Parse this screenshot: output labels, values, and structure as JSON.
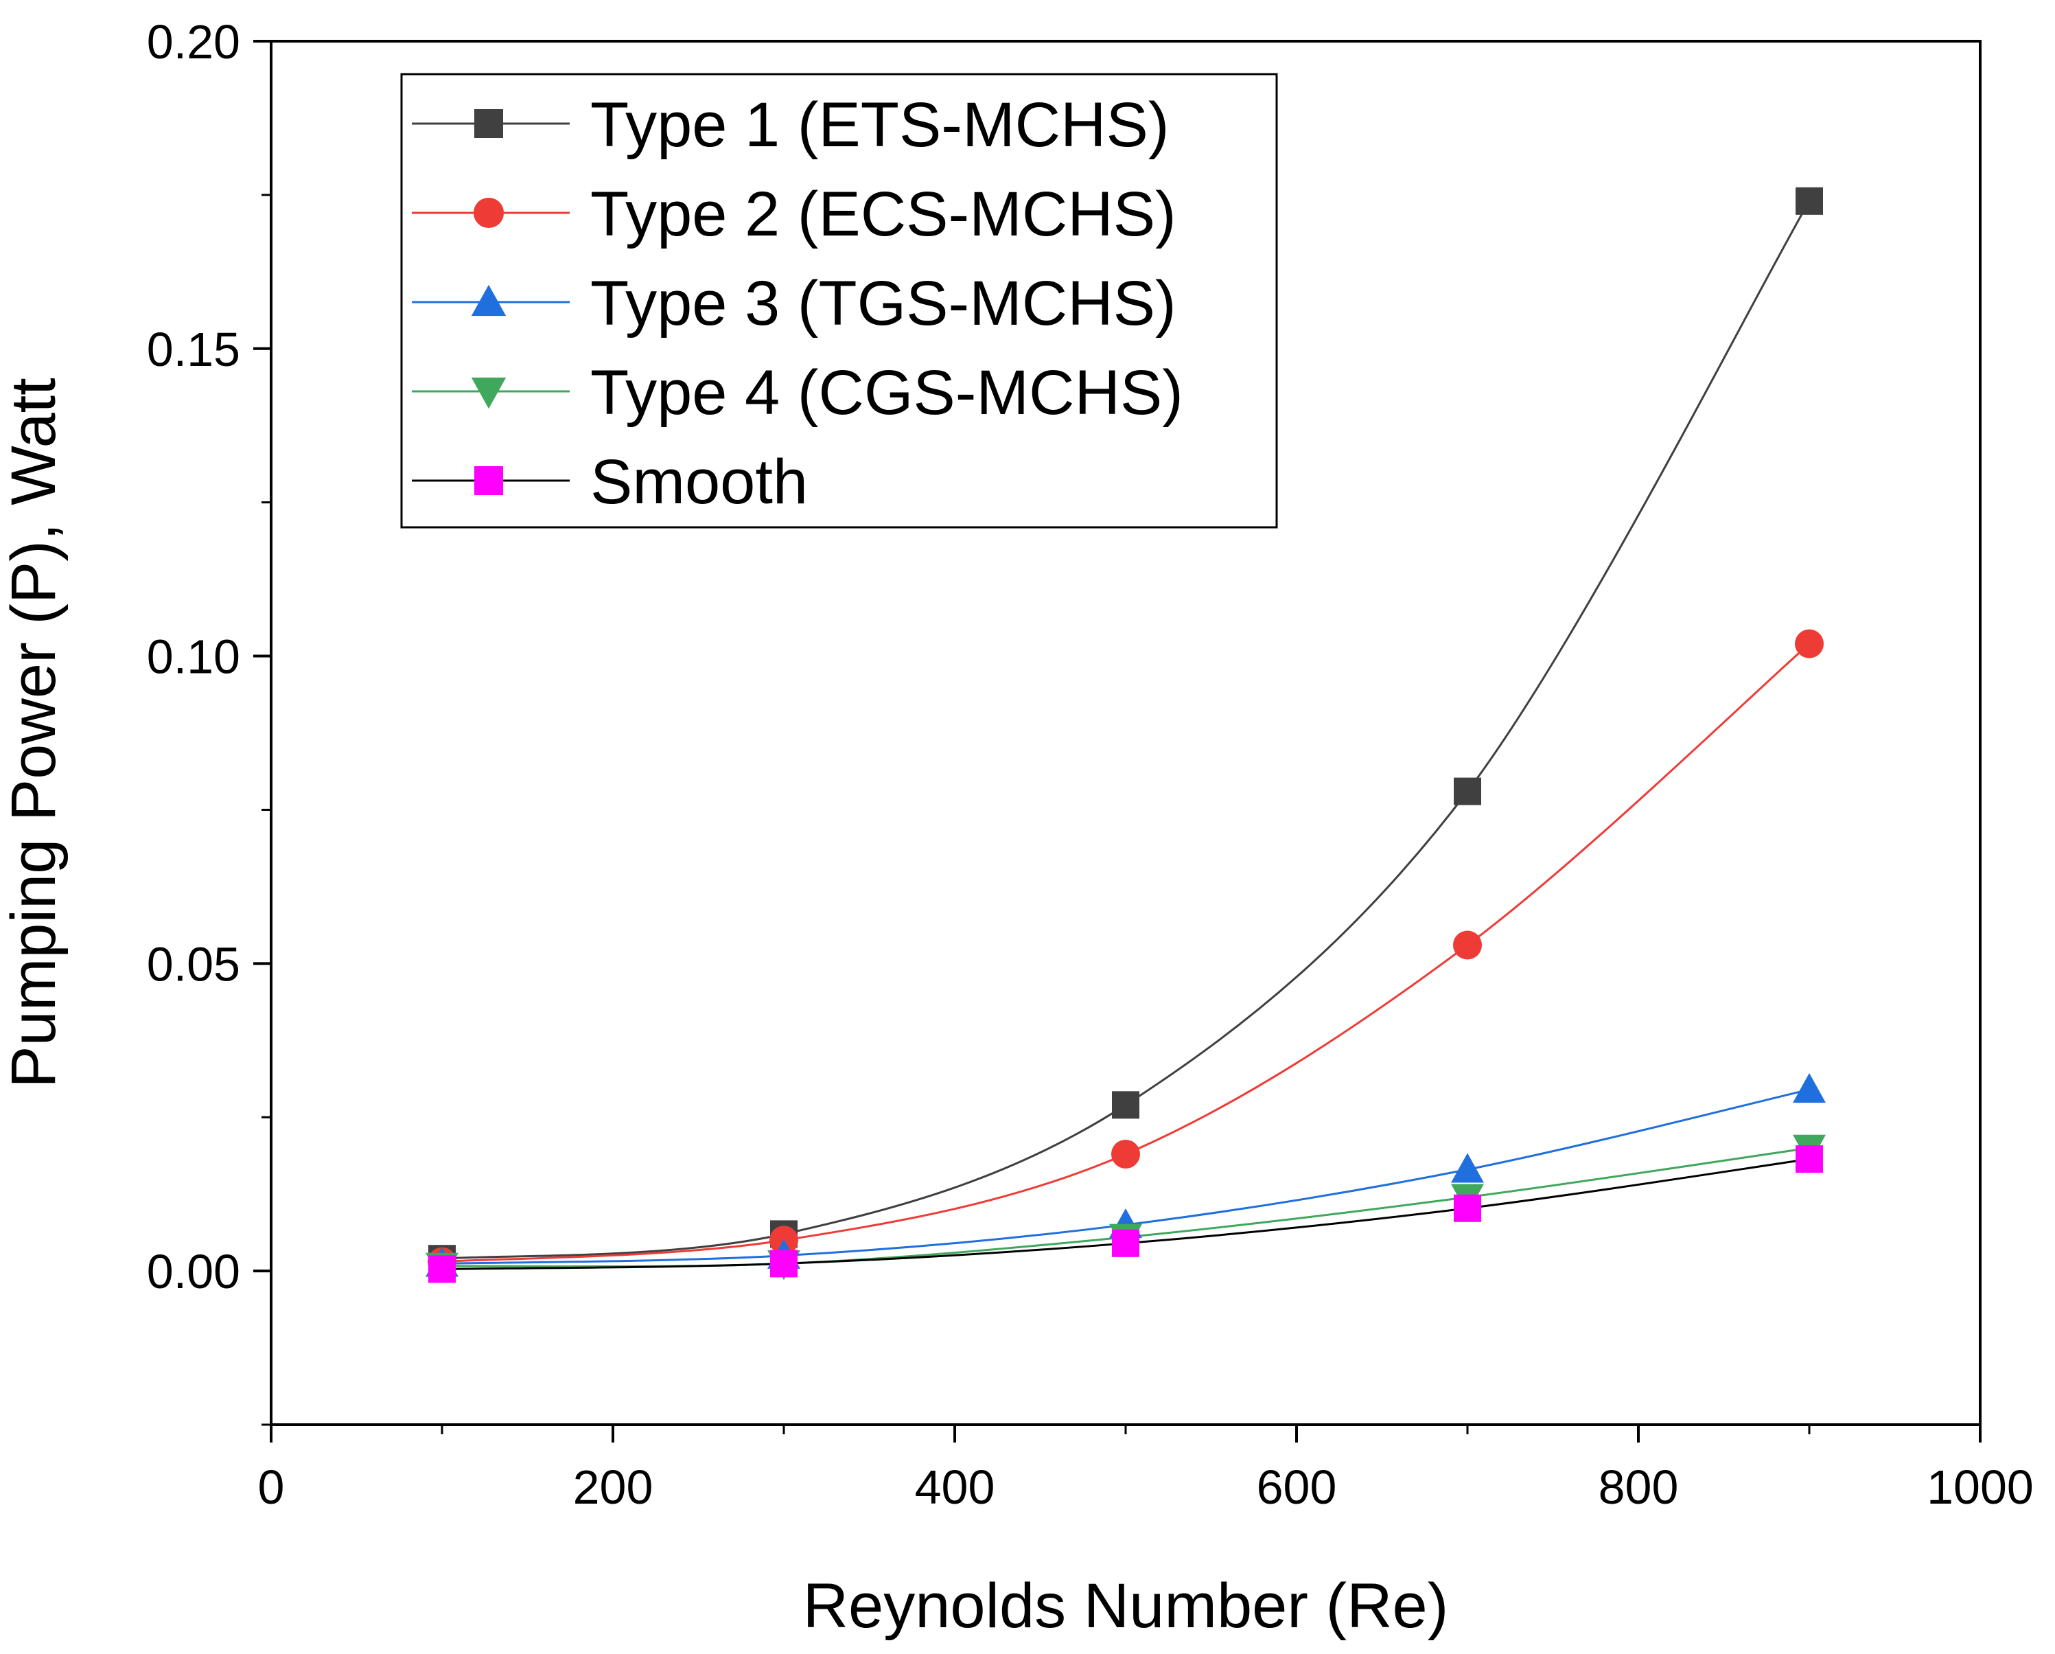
{
  "chart_data": {
    "type": "line",
    "title": "",
    "xlabel": "Reynolds Number (Re)",
    "ylabel": "Pumping Power (P), Watt",
    "xlim": [
      0,
      1000
    ],
    "ylim": [
      -0.025,
      0.2
    ],
    "x_ticks": [
      0,
      200,
      400,
      600,
      800,
      1000
    ],
    "x_tick_labels": [
      "0",
      "200",
      "400",
      "600",
      "800",
      "1000"
    ],
    "y_ticks": [
      0,
      0.05,
      0.1,
      0.15,
      0.2
    ],
    "y_tick_labels": [
      "0.00",
      "0.05",
      "0.10",
      "0.15",
      "0.20"
    ],
    "grid": false,
    "legend_position": "top-left",
    "x": [
      100,
      300,
      500,
      700,
      900
    ],
    "series": [
      {
        "name": "Type 1 (ETS-MCHS)",
        "marker": "square",
        "marker_color": "#404040",
        "line_color": "#404040",
        "values": [
          0.002,
          0.006,
          0.027,
          0.078,
          0.174
        ]
      },
      {
        "name": "Type 2 (ECS-MCHS)",
        "marker": "circle",
        "marker_color": "#ef3b36",
        "line_color": "#ef3b36",
        "values": [
          0.0015,
          0.005,
          0.019,
          0.053,
          0.102
        ]
      },
      {
        "name": "Type 3 (TGS-MCHS)",
        "marker": "triangle-up",
        "marker_color": "#1f6fde",
        "line_color": "#1f6fde",
        "values": [
          0.0012,
          0.0025,
          0.0075,
          0.0165,
          0.0295
        ]
      },
      {
        "name": "Type 4 (CGS-MCHS)",
        "marker": "triangle-down",
        "marker_color": "#3fa85c",
        "line_color": "#3fa85c",
        "values": [
          0.0008,
          0.0012,
          0.0055,
          0.012,
          0.02
        ]
      },
      {
        "name": "Smooth",
        "marker": "square",
        "marker_color": "#ff00ff",
        "line_color": "#000000",
        "values": [
          0.0003,
          0.0012,
          0.0045,
          0.0102,
          0.0182
        ]
      }
    ]
  }
}
